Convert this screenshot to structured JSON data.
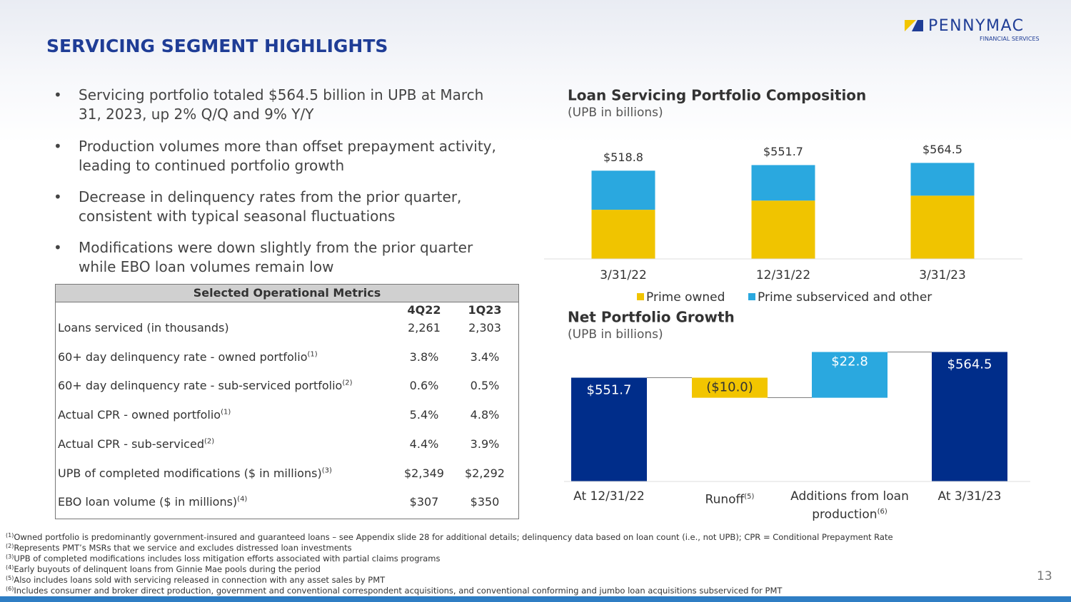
{
  "header": {
    "title": "SERVICING SEGMENT HIGHLIGHTS",
    "logo": "PENNYMAC",
    "logo_sub": "FINANCIAL SERVICES"
  },
  "bullets": [
    "Servicing portfolio totaled $564.5 billion in UPB at March 31, 2023, up 2% Q/Q and 9% Y/Y",
    "Production volumes more than offset prepayment activity, leading to continued portfolio growth",
    "Decrease in delinquency rates from the prior quarter, consistent with typical seasonal fluctuations",
    "Modifications were down slightly from the prior quarter while EBO loan volumes remain low"
  ],
  "table": {
    "title": "Selected Operational Metrics",
    "columns": [
      "4Q22",
      "1Q23"
    ],
    "rows": [
      {
        "label": "Loans serviced (in thousands)",
        "note": null,
        "values": [
          "2,261",
          "2,303"
        ]
      },
      {
        "label": "60+ day delinquency rate - owned portfolio",
        "note": "(1)",
        "values": [
          "3.8%",
          "3.4%"
        ]
      },
      {
        "label": "60+ day delinquency rate - sub-serviced portfolio",
        "note": "(2)",
        "values": [
          "0.6%",
          "0.5%"
        ]
      },
      {
        "label": "Actual CPR - owned portfolio",
        "note": "(1)",
        "values": [
          "5.4%",
          "4.8%"
        ]
      },
      {
        "label": "Actual CPR - sub-serviced",
        "note": "(2)",
        "values": [
          "4.4%",
          "3.9%"
        ]
      },
      {
        "label": "UPB of completed modifications ($ in millions)",
        "note": "(3)",
        "values": [
          "$2,349",
          "$2,292"
        ]
      },
      {
        "label": "EBO loan volume ($ in millions)",
        "note": "(4)",
        "values": [
          "$307",
          "$350"
        ]
      }
    ]
  },
  "chart_data": [
    {
      "type": "stacked-bar",
      "title": "Loan Servicing Portfolio Composition",
      "subtitle": "(UPB in billions)",
      "categories": [
        "3/31/22",
        "12/31/22",
        "3/31/23"
      ],
      "series": [
        {
          "name": "Prime owned",
          "color": "#f0c400",
          "values": [
            289,
            343,
            372
          ]
        },
        {
          "name": "Prime subserviced and other",
          "color": "#2aa8df",
          "values": [
            229.8,
            208.7,
            192.5
          ]
        }
      ],
      "totals": [
        518.8,
        551.7,
        564.5
      ],
      "total_labels": [
        "$518.8",
        "$551.7",
        "$564.5"
      ],
      "ylim": [
        0,
        650
      ]
    },
    {
      "type": "waterfall",
      "title": "Net Portfolio Growth",
      "subtitle": "(UPB in billions)",
      "categories": [
        "At 12/31/22",
        "Runoff",
        "Additions from loan production",
        "At 3/31/23"
      ],
      "category_notes": [
        null,
        "(5)",
        "(6)",
        null
      ],
      "values": [
        551.7,
        -10.0,
        22.8,
        564.5
      ],
      "value_labels": [
        "$551.7",
        "($10.0)",
        "$22.8",
        "$564.5"
      ],
      "is_total": [
        true,
        false,
        false,
        true
      ],
      "colors": [
        "#002d8a",
        "#f2c500",
        "#2aa8df",
        "#002d8a"
      ],
      "ylim": [
        500,
        570
      ]
    }
  ],
  "footnotes": [
    {
      "marker": "(1)",
      "text": "Owned portfolio is predominantly government-insured and guaranteed loans – see Appendix slide 28 for additional details; delinquency data based on loan count (i.e., not UPB); CPR = Conditional Prepayment Rate"
    },
    {
      "marker": "(2)",
      "text": "Represents PMT’s MSRs that we service and excludes distressed loan investments"
    },
    {
      "marker": "(3)",
      "text": "UPB of completed modifications includes loss mitigation efforts associated with partial claims programs"
    },
    {
      "marker": "(4)",
      "text": "Early buyouts of delinquent loans from Ginnie Mae pools during the period"
    },
    {
      "marker": "(5)",
      "text": "Also includes loans sold with servicing released in connection with any asset sales by PMT"
    },
    {
      "marker": "(6)",
      "text": "Includes consumer and broker direct production, government and conventional correspondent acquisitions, and conventional conforming and jumbo loan acquisitions subserviced for PMT"
    }
  ],
  "page_number": "13"
}
